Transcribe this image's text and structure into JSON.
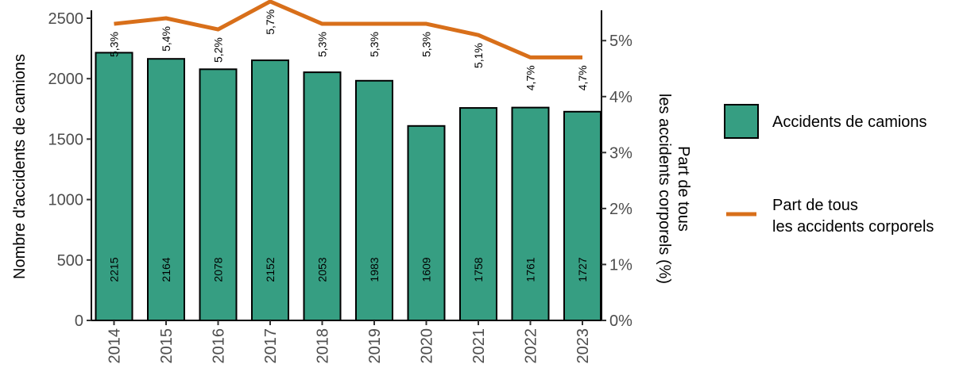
{
  "chart_data": {
    "type": "bar",
    "categories": [
      "2014",
      "2015",
      "2016",
      "2017",
      "2018",
      "2019",
      "2020",
      "2021",
      "2022",
      "2023"
    ],
    "series": [
      {
        "name": "Accidents de camions",
        "type": "bar",
        "axis": "left",
        "values": [
          2215,
          2164,
          2078,
          2152,
          2053,
          1983,
          1609,
          1758,
          1761,
          1727
        ],
        "labels": [
          "2215",
          "2164",
          "2078",
          "2152",
          "2053",
          "1983",
          "1609",
          "1758",
          "1761",
          "1727"
        ],
        "color": "#369e82"
      },
      {
        "name_lines": [
          "Part de tous",
          "les accidents corporels"
        ],
        "type": "line",
        "axis": "right",
        "values": [
          5.3,
          5.4,
          5.2,
          5.7,
          5.3,
          5.3,
          5.3,
          5.1,
          4.7,
          4.7
        ],
        "labels": [
          "5,3%",
          "5,4%",
          "5,2%",
          "5,7%",
          "5,3%",
          "5,3%",
          "5,3%",
          "5,1%",
          "4,7%",
          "4,7%"
        ],
        "color": "#d86f1a"
      }
    ],
    "y_left": {
      "title": "Nombre d'accidents de camions",
      "ylim": [
        0,
        2500
      ],
      "ticks": [
        0,
        500,
        1000,
        1500,
        2000,
        2500
      ],
      "tick_labels": [
        "0",
        "500",
        "1000",
        "1500",
        "2000",
        "2500"
      ]
    },
    "y_right": {
      "title_lines": [
        "Part de tous",
        "les accidents corporels (%)"
      ],
      "ylim": [
        0,
        5.4
      ],
      "ticks": [
        0,
        1,
        2,
        3,
        4,
        5
      ],
      "tick_labels": [
        "0%",
        "1%",
        "2%",
        "3%",
        "4%",
        "5%"
      ]
    },
    "legend_placement": "right",
    "grid": false
  }
}
